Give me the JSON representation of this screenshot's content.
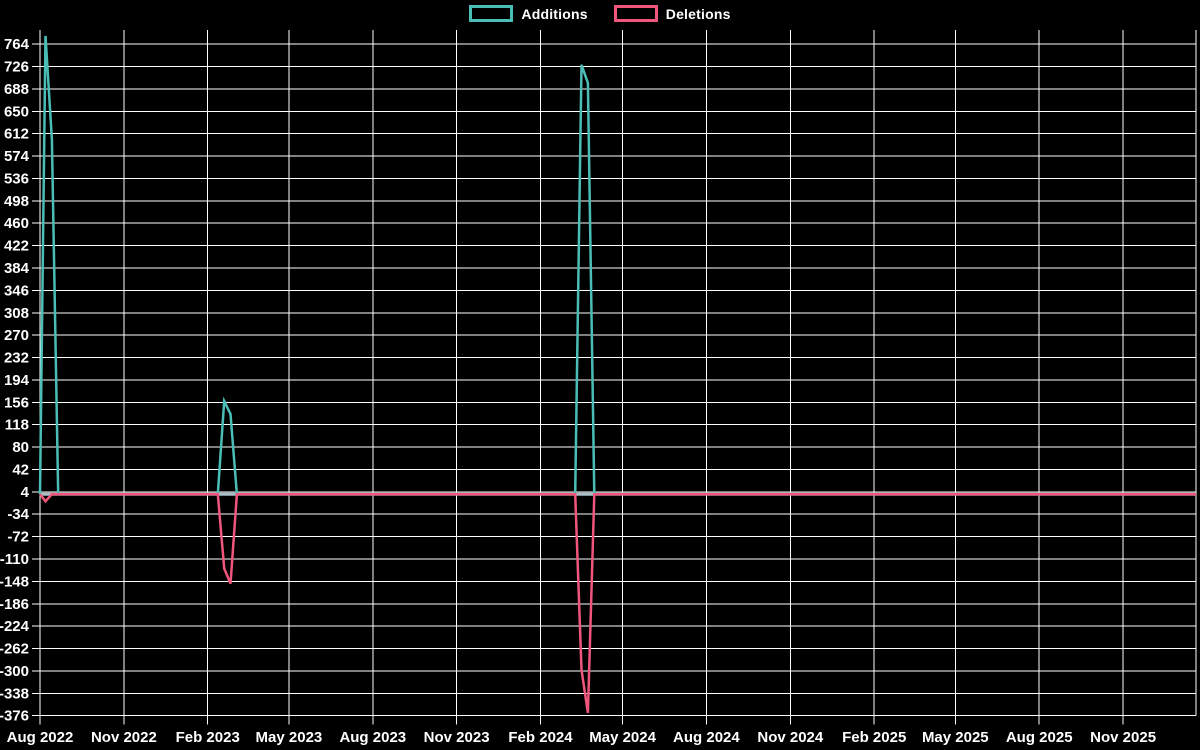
{
  "legend": {
    "items": [
      {
        "label": "Additions",
        "color": "#4abdb6"
      },
      {
        "label": "Deletions",
        "color": "#f0567c"
      }
    ]
  },
  "chart_data": {
    "type": "line",
    "title": "",
    "xlabel": "",
    "ylabel": "",
    "background_color": "#000000",
    "grid": true,
    "grid_color": "#ffffff",
    "text_color": "#ffffff",
    "legend_position": "top",
    "baseline_color": "#a9bec6",
    "ylim": [
      -385,
      788
    ],
    "x_range": [
      "2022-08-01",
      "2026-01-20"
    ],
    "y_ticks": [
      764,
      726,
      688,
      650,
      612,
      574,
      536,
      498,
      460,
      422,
      384,
      346,
      308,
      270,
      232,
      194,
      156,
      118,
      80,
      42,
      4,
      -34,
      -72,
      -110,
      -148,
      -186,
      -224,
      -262,
      -300,
      -338,
      -376
    ],
    "x_ticks": [
      {
        "label": "Aug 2022",
        "date": "2022-08-01"
      },
      {
        "label": "Nov 2022",
        "date": "2022-11-01"
      },
      {
        "label": "Feb 2023",
        "date": "2023-02-01"
      },
      {
        "label": "May 2023",
        "date": "2023-05-01"
      },
      {
        "label": "Aug 2023",
        "date": "2023-08-01"
      },
      {
        "label": "Nov 2023",
        "date": "2023-11-01"
      },
      {
        "label": "Feb 2024",
        "date": "2024-02-01"
      },
      {
        "label": "May 2024",
        "date": "2024-05-01"
      },
      {
        "label": "Aug 2024",
        "date": "2024-08-01"
      },
      {
        "label": "Nov 2024",
        "date": "2024-11-01"
      },
      {
        "label": "Feb 2025",
        "date": "2025-02-01"
      },
      {
        "label": "May 2025",
        "date": "2025-05-01"
      },
      {
        "label": "Aug 2025",
        "date": "2025-08-01"
      },
      {
        "label": "Nov 2025",
        "date": "2025-11-01"
      }
    ],
    "series": [
      {
        "name": "Additions",
        "color": "#4abdb6",
        "points": [
          [
            "2022-08-01",
            0
          ],
          [
            "2022-08-07",
            778
          ],
          [
            "2022-08-14",
            602
          ],
          [
            "2022-08-21",
            0
          ],
          [
            "2023-02-12",
            0
          ],
          [
            "2023-02-19",
            158
          ],
          [
            "2023-02-26",
            136
          ],
          [
            "2023-03-05",
            0
          ],
          [
            "2024-03-10",
            0
          ],
          [
            "2024-03-17",
            729
          ],
          [
            "2024-03-24",
            698
          ],
          [
            "2024-03-31",
            0
          ],
          [
            "2026-01-20",
            0
          ]
        ]
      },
      {
        "name": "Deletions",
        "color": "#f0567c",
        "points": [
          [
            "2022-08-01",
            0
          ],
          [
            "2022-08-07",
            -12
          ],
          [
            "2022-08-14",
            0
          ],
          [
            "2023-02-12",
            0
          ],
          [
            "2023-02-19",
            -126
          ],
          [
            "2023-02-26",
            -152
          ],
          [
            "2023-03-05",
            0
          ],
          [
            "2024-03-10",
            0
          ],
          [
            "2024-03-17",
            -298
          ],
          [
            "2024-03-24",
            -371
          ],
          [
            "2024-03-31",
            0
          ],
          [
            "2026-01-20",
            0
          ]
        ]
      }
    ]
  }
}
